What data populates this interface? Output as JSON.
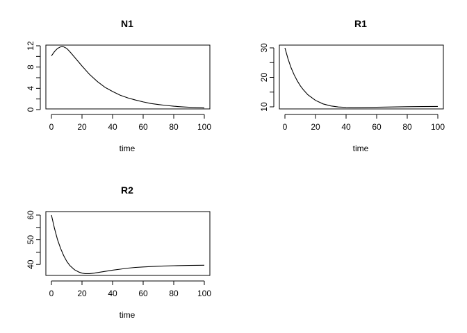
{
  "chart_data": [
    {
      "type": "line",
      "title": "N1",
      "xlabel": "time",
      "ylabel": "",
      "xlim": [
        0,
        100
      ],
      "ylim": [
        0,
        12
      ],
      "xticks": [
        0,
        20,
        40,
        60,
        80,
        100
      ],
      "yticks": [
        0,
        2,
        4,
        6,
        8,
        10,
        12
      ],
      "ytick_labels": [
        "0",
        "",
        "4",
        "",
        "8",
        "",
        "12"
      ],
      "grid": false,
      "series": [
        {
          "x": [
            0,
            2,
            4,
            6,
            7,
            8,
            10,
            12,
            15,
            20,
            25,
            30,
            35,
            40,
            45,
            50,
            55,
            60,
            65,
            70,
            75,
            80,
            85,
            90,
            95,
            100
          ],
          "values": [
            10.1,
            10.9,
            11.5,
            11.8,
            11.85,
            11.8,
            11.5,
            10.9,
            9.9,
            8.2,
            6.6,
            5.3,
            4.2,
            3.4,
            2.7,
            2.2,
            1.8,
            1.45,
            1.15,
            0.95,
            0.78,
            0.64,
            0.53,
            0.44,
            0.37,
            0.31
          ]
        }
      ],
      "color": "#000000"
    },
    {
      "type": "line",
      "title": "R1",
      "xlabel": "time",
      "ylabel": "",
      "xlim": [
        0,
        100
      ],
      "ylim": [
        10,
        30
      ],
      "xticks": [
        0,
        20,
        40,
        60,
        80,
        100
      ],
      "yticks": [
        10,
        15,
        20,
        25,
        30
      ],
      "ytick_labels": [
        "10",
        "",
        "20",
        "",
        "30"
      ],
      "grid": false,
      "series": [
        {
          "x": [
            0,
            2,
            4,
            6,
            8,
            10,
            12,
            15,
            20,
            25,
            30,
            35,
            40,
            45,
            50,
            60,
            70,
            80,
            90,
            100
          ],
          "values": [
            30,
            26.3,
            23.3,
            20.9,
            18.9,
            17.2,
            15.8,
            14.1,
            12.2,
            11.0,
            10.3,
            9.95,
            9.8,
            9.75,
            9.78,
            9.85,
            9.95,
            10.05,
            10.1,
            10.15
          ]
        }
      ],
      "color": "#000000"
    },
    {
      "type": "line",
      "title": "R2",
      "xlabel": "time",
      "ylabel": "",
      "xlim": [
        0,
        100
      ],
      "ylim": [
        35,
        60
      ],
      "xticks": [
        0,
        20,
        40,
        60,
        80,
        100
      ],
      "yticks": [
        40,
        45,
        50,
        55,
        60
      ],
      "ytick_labels": [
        "40",
        "",
        "50",
        "",
        "60"
      ],
      "grid": false,
      "series": [
        {
          "x": [
            0,
            2,
            4,
            6,
            8,
            10,
            12,
            15,
            18,
            20,
            22,
            25,
            28,
            30,
            35,
            40,
            45,
            50,
            55,
            60,
            70,
            80,
            90,
            100
          ],
          "values": [
            60,
            54.6,
            50.0,
            46.5,
            43.6,
            41.3,
            39.6,
            37.9,
            36.9,
            36.5,
            36.3,
            36.3,
            36.5,
            36.7,
            37.2,
            37.7,
            38.1,
            38.5,
            38.8,
            39.0,
            39.3,
            39.5,
            39.6,
            39.7
          ]
        }
      ],
      "color": "#000000"
    }
  ]
}
